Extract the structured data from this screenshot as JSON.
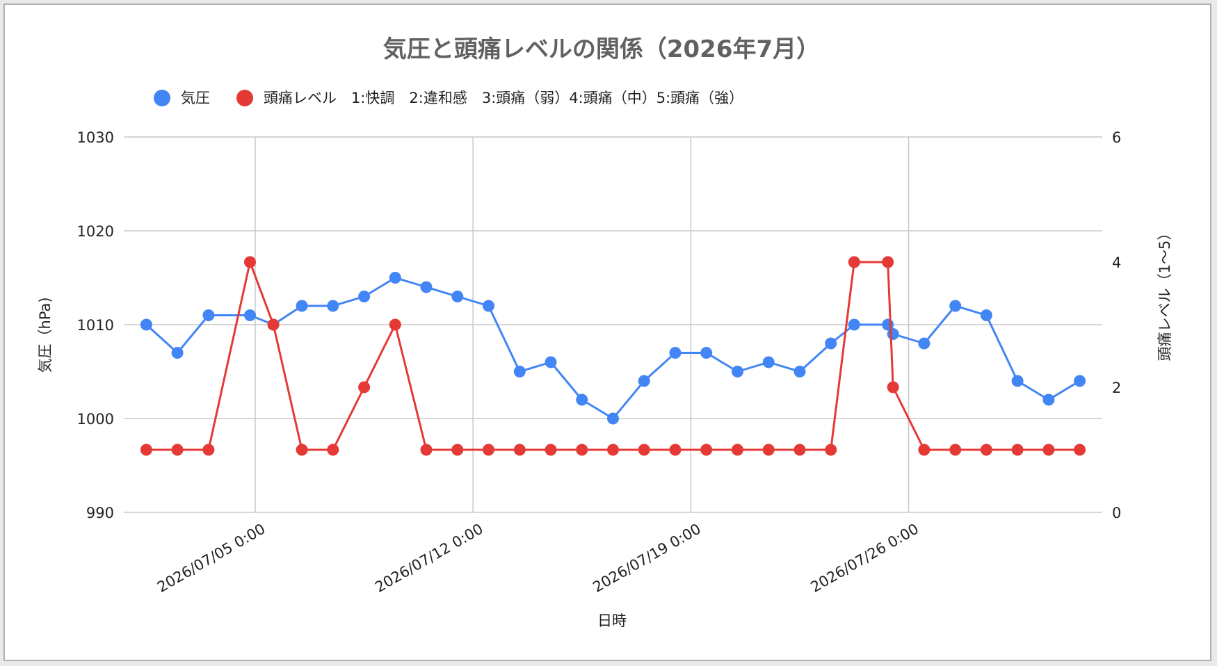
{
  "chart_data": {
    "type": "line",
    "title": "気圧と頭痛レベルの関係（2026年7月）",
    "xlabel": "日時",
    "ylabel_left": "気圧（hPa)",
    "ylabel_right": "頭痛レベル（1〜5）",
    "ylim_left": [
      990,
      1030
    ],
    "ylim_right": [
      0,
      6
    ],
    "yticks_left": [
      "990",
      "1000",
      "1010",
      "1020",
      "1030"
    ],
    "yticks_right": [
      "0",
      "2",
      "4",
      "6"
    ],
    "xticks": [
      "2026/07/05 0:00",
      "2026/07/12 0:00",
      "2026/07/19 0:00",
      "2026/07/26 0:00"
    ],
    "grid": true,
    "legend_position": "top-left",
    "series": [
      {
        "name": "気圧",
        "axis": "left",
        "color": "#4285f4",
        "points": [
          [
            "2026/07/01 12:00",
            1010
          ],
          [
            "2026/07/02 12:00",
            1007
          ],
          [
            "2026/07/03 12:00",
            1011
          ],
          [
            "2026/07/04 20:00",
            1011
          ],
          [
            "2026/07/05 14:00",
            1010
          ],
          [
            "2026/07/06 12:00",
            1012
          ],
          [
            "2026/07/07 12:00",
            1012
          ],
          [
            "2026/07/08 12:00",
            1013
          ],
          [
            "2026/07/09 12:00",
            1015
          ],
          [
            "2026/07/10 12:00",
            1014
          ],
          [
            "2026/07/11 12:00",
            1013
          ],
          [
            "2026/07/12 12:00",
            1012
          ],
          [
            "2026/07/13 12:00",
            1005
          ],
          [
            "2026/07/14 12:00",
            1006
          ],
          [
            "2026/07/15 12:00",
            1002
          ],
          [
            "2026/07/16 12:00",
            1000
          ],
          [
            "2026/07/17 12:00",
            1004
          ],
          [
            "2026/07/18 12:00",
            1007
          ],
          [
            "2026/07/19 12:00",
            1007
          ],
          [
            "2026/07/20 12:00",
            1005
          ],
          [
            "2026/07/21 12:00",
            1006
          ],
          [
            "2026/07/22 12:00",
            1005
          ],
          [
            "2026/07/23 12:00",
            1008
          ],
          [
            "2026/07/24 06:00",
            1010
          ],
          [
            "2026/07/25 08:00",
            1010
          ],
          [
            "2026/07/25 12:00",
            1009
          ],
          [
            "2026/07/26 12:00",
            1008
          ],
          [
            "2026/07/27 12:00",
            1012
          ],
          [
            "2026/07/28 12:00",
            1011
          ],
          [
            "2026/07/29 12:00",
            1004
          ],
          [
            "2026/07/30 12:00",
            1002
          ],
          [
            "2026/07/31 12:00",
            1004
          ]
        ]
      },
      {
        "name": "頭痛レベル　1:快調　2:違和感　3:頭痛（弱）4:頭痛（中）5:頭痛（強）",
        "axis": "right",
        "color": "#e53935",
        "points": [
          [
            "2026/07/01 12:00",
            1
          ],
          [
            "2026/07/02 12:00",
            1
          ],
          [
            "2026/07/03 12:00",
            1
          ],
          [
            "2026/07/04 20:00",
            4
          ],
          [
            "2026/07/05 14:00",
            3
          ],
          [
            "2026/07/06 12:00",
            1
          ],
          [
            "2026/07/07 12:00",
            1
          ],
          [
            "2026/07/08 12:00",
            2
          ],
          [
            "2026/07/09 12:00",
            3
          ],
          [
            "2026/07/10 12:00",
            1
          ],
          [
            "2026/07/11 12:00",
            1
          ],
          [
            "2026/07/12 12:00",
            1
          ],
          [
            "2026/07/13 12:00",
            1
          ],
          [
            "2026/07/14 12:00",
            1
          ],
          [
            "2026/07/15 12:00",
            1
          ],
          [
            "2026/07/16 12:00",
            1
          ],
          [
            "2026/07/17 12:00",
            1
          ],
          [
            "2026/07/18 12:00",
            1
          ],
          [
            "2026/07/19 12:00",
            1
          ],
          [
            "2026/07/20 12:00",
            1
          ],
          [
            "2026/07/21 12:00",
            1
          ],
          [
            "2026/07/22 12:00",
            1
          ],
          [
            "2026/07/23 12:00",
            1
          ],
          [
            "2026/07/24 06:00",
            4
          ],
          [
            "2026/07/25 08:00",
            4
          ],
          [
            "2026/07/25 12:00",
            2
          ],
          [
            "2026/07/26 12:00",
            1
          ],
          [
            "2026/07/27 12:00",
            1
          ],
          [
            "2026/07/28 12:00",
            1
          ],
          [
            "2026/07/29 12:00",
            1
          ],
          [
            "2026/07/30 12:00",
            1
          ],
          [
            "2026/07/31 12:00",
            1
          ]
        ]
      }
    ]
  }
}
